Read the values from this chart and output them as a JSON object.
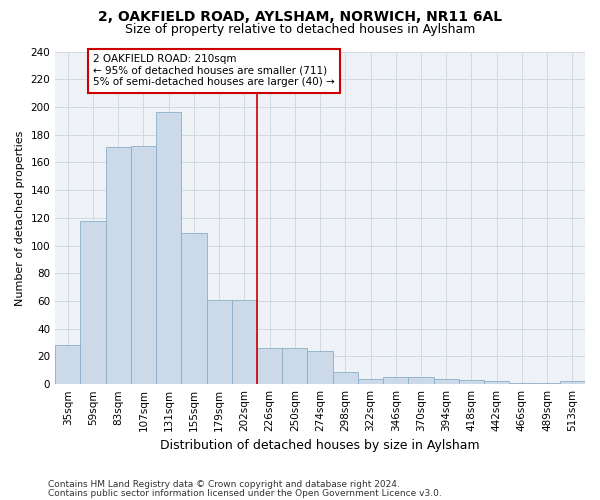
{
  "title": "2, OAKFIELD ROAD, AYLSHAM, NORWICH, NR11 6AL",
  "subtitle": "Size of property relative to detached houses in Aylsham",
  "xlabel": "Distribution of detached houses by size in Aylsham",
  "ylabel": "Number of detached properties",
  "footer_line1": "Contains HM Land Registry data © Crown copyright and database right 2024.",
  "footer_line2": "Contains public sector information licensed under the Open Government Licence v3.0.",
  "bar_labels": [
    "35sqm",
    "59sqm",
    "83sqm",
    "107sqm",
    "131sqm",
    "155sqm",
    "179sqm",
    "202sqm",
    "226sqm",
    "250sqm",
    "274sqm",
    "298sqm",
    "322sqm",
    "346sqm",
    "370sqm",
    "394sqm",
    "418sqm",
    "442sqm",
    "466sqm",
    "489sqm",
    "513sqm"
  ],
  "bar_heights": [
    28,
    118,
    171,
    172,
    196,
    109,
    61,
    61,
    26,
    26,
    24,
    9,
    4,
    5,
    5,
    4,
    3,
    2,
    1,
    1,
    2
  ],
  "bar_color": "#ccd9e8",
  "bar_edge_color": "#8aafc8",
  "vline_color": "#cc0000",
  "annotation_text": "2 OAKFIELD ROAD: 210sqm\n← 95% of detached houses are smaller (711)\n5% of semi-detached houses are larger (40) →",
  "annotation_box_color": "#ffffff",
  "annotation_box_edge_color": "#cc0000",
  "ylim": [
    0,
    240
  ],
  "yticks": [
    0,
    20,
    40,
    60,
    80,
    100,
    120,
    140,
    160,
    180,
    200,
    220,
    240
  ],
  "grid_color": "#d0d8e0",
  "bg_color": "#eef2f7",
  "title_fontsize": 10,
  "subtitle_fontsize": 9,
  "xlabel_fontsize": 9,
  "ylabel_fontsize": 8,
  "tick_fontsize": 7.5,
  "annotation_fontsize": 7.5,
  "footer_fontsize": 6.5
}
